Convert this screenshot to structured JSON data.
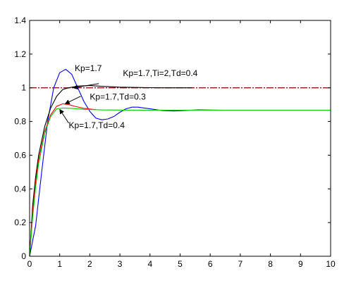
{
  "chart_data": {
    "type": "line",
    "title": "",
    "xlabel": "",
    "ylabel": "",
    "xlim": [
      0,
      10
    ],
    "ylim": [
      0,
      1.4
    ],
    "grid": false,
    "x_ticks": [
      "0",
      "1",
      "2",
      "3",
      "4",
      "5",
      "6",
      "7",
      "8",
      "9",
      "10"
    ],
    "y_ticks": [
      "0",
      "0.2",
      "0.4",
      "0.6",
      "0.8",
      "1",
      "1.2",
      "1.4"
    ],
    "reference_line": {
      "y": 1,
      "style": "dashed",
      "color": "#800000"
    },
    "series": [
      {
        "color": "#0000ff",
        "x": [
          0,
          0.2,
          0.4,
          0.6,
          0.8,
          1.0,
          1.2,
          1.4,
          1.6,
          1.8,
          2.0,
          2.2,
          2.4,
          2.6,
          2.8,
          3.0,
          3.2,
          3.4,
          3.6,
          3.8,
          4.0,
          4.4,
          4.8,
          5.2,
          5.6,
          6.0,
          6.4,
          6.8
        ],
        "values": [
          0,
          0.18,
          0.5,
          0.8,
          1.0,
          1.09,
          1.11,
          1.08,
          1.0,
          0.92,
          0.86,
          0.82,
          0.81,
          0.815,
          0.83,
          0.855,
          0.875,
          0.885,
          0.885,
          0.88,
          0.875,
          0.865,
          0.862,
          0.866,
          0.869,
          0.868,
          0.867,
          0.867
        ]
      },
      {
        "color": "#000000",
        "x": [
          0,
          0.1,
          0.2,
          0.3,
          0.5,
          0.7,
          0.9,
          1.1,
          1.3,
          1.6,
          2.0,
          2.5,
          3.0,
          3.5,
          4.0,
          4.5,
          5.0,
          5.4
        ],
        "values": [
          0,
          0.3,
          0.47,
          0.6,
          0.77,
          0.88,
          0.95,
          0.99,
          1.0,
          1.01,
          1.013,
          1.008,
          1.004,
          1.002,
          1.001,
          1.0,
          1.0,
          1.0
        ]
      },
      {
        "color": "#ff0000",
        "x": [
          0,
          0.1,
          0.2,
          0.3,
          0.5,
          0.7,
          0.9,
          1.1,
          1.3,
          1.5,
          1.8,
          2.2
        ],
        "values": [
          0,
          0.26,
          0.44,
          0.57,
          0.74,
          0.84,
          0.89,
          0.905,
          0.9,
          0.89,
          0.878,
          0.87
        ]
      },
      {
        "color": "#00cc00",
        "x": [
          0,
          0.1,
          0.2,
          0.3,
          0.5,
          0.7,
          0.9,
          1.1,
          1.4,
          1.8,
          2.4,
          3.0,
          4.0,
          5.0,
          6.0,
          7.0,
          8.0,
          9.0,
          10.0
        ],
        "values": [
          0,
          0.23,
          0.41,
          0.55,
          0.73,
          0.83,
          0.875,
          0.88,
          0.878,
          0.872,
          0.869,
          0.868,
          0.867,
          0.867,
          0.867,
          0.867,
          0.867,
          0.867,
          0.867
        ]
      }
    ],
    "annotations": [
      {
        "text": "Kp=1.7",
        "tx": 1.5,
        "ty": 1.1
      },
      {
        "text": "Kp=1.7,Ti=2,Td=0.4",
        "tx": 3.1,
        "ty": 1.07,
        "ax": 2.3,
        "ay": 1.025,
        "bx": 1.45,
        "by": 1.0
      },
      {
        "text": "Kp=1.7,Td=0.3",
        "tx": 2.0,
        "ty": 0.93,
        "ax": 1.7,
        "ay": 0.95,
        "bx": 1.18,
        "by": 0.905
      },
      {
        "text": "Kp=1.7,Td=0.4",
        "tx": 1.3,
        "ty": 0.76,
        "ax": 1.3,
        "ay": 0.79,
        "bx": 1.0,
        "by": 0.872
      }
    ]
  }
}
